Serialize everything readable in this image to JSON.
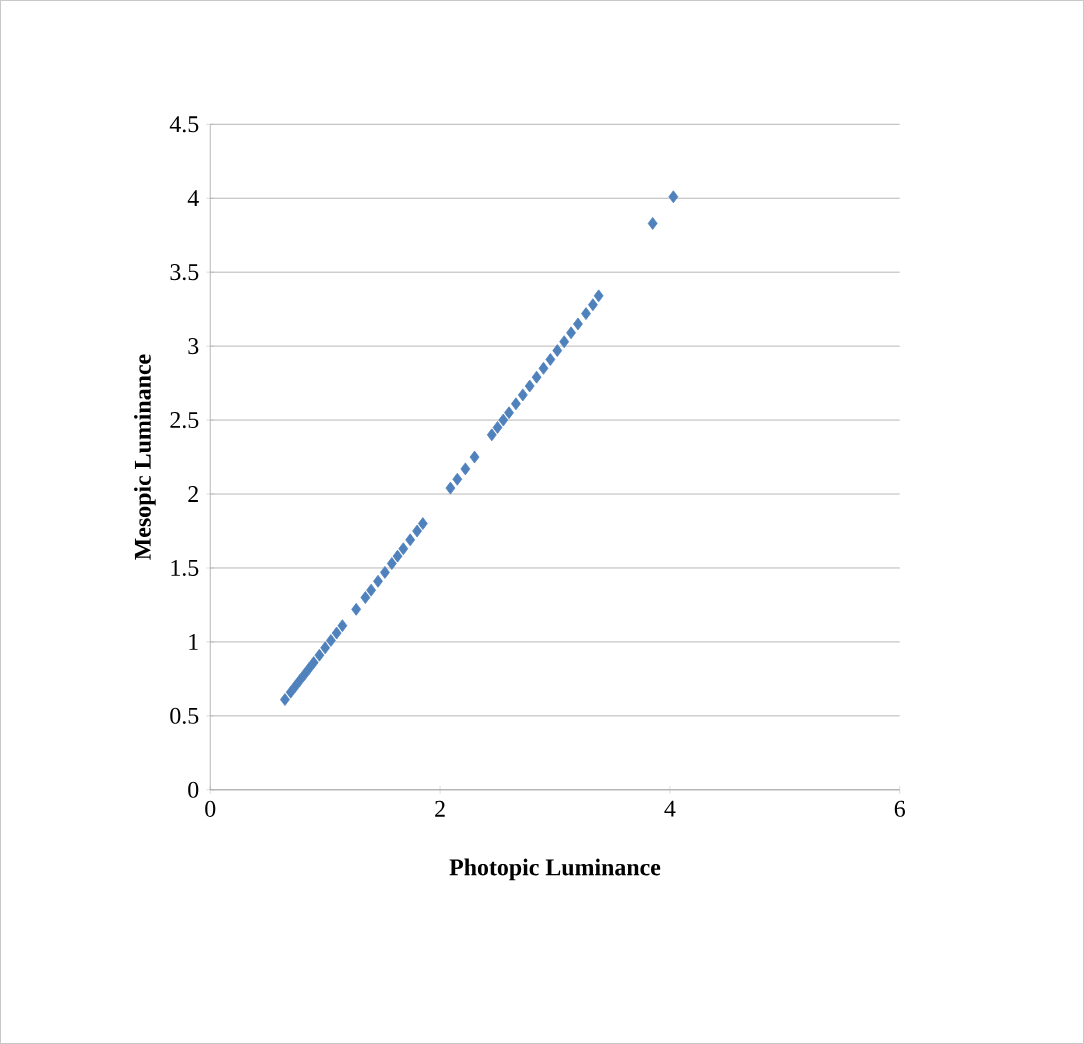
{
  "chart_data": {
    "type": "scatter",
    "xlabel": "Photopic Luminance",
    "ylabel": "Mesopic Luminance",
    "x": [
      0.65,
      0.7,
      0.74,
      0.78,
      0.82,
      0.86,
      0.9,
      0.95,
      1.0,
      1.05,
      1.1,
      1.15,
      1.27,
      1.35,
      1.4,
      1.46,
      1.52,
      1.58,
      1.63,
      1.68,
      1.74,
      1.8,
      1.85,
      2.09,
      2.15,
      2.22,
      2.3,
      2.45,
      2.5,
      2.55,
      2.6,
      2.66,
      2.72,
      2.78,
      2.84,
      2.9,
      2.96,
      3.02,
      3.08,
      3.14,
      3.2,
      3.27,
      3.33,
      3.38,
      3.85,
      4.03
    ],
    "values": [
      0.61,
      0.66,
      0.7,
      0.74,
      0.78,
      0.82,
      0.86,
      0.91,
      0.96,
      1.01,
      1.06,
      1.11,
      1.22,
      1.3,
      1.35,
      1.41,
      1.47,
      1.53,
      1.58,
      1.63,
      1.69,
      1.75,
      1.8,
      2.04,
      2.1,
      2.17,
      2.25,
      2.4,
      2.45,
      2.5,
      2.55,
      2.61,
      2.67,
      2.73,
      2.79,
      2.85,
      2.91,
      2.97,
      3.03,
      3.09,
      3.15,
      3.22,
      3.28,
      3.34,
      3.83,
      4.01
    ],
    "color": "#4f81bd",
    "marker": "diamond",
    "grid": "y",
    "xlim": [
      0,
      6
    ],
    "xticks": [
      0,
      2,
      4,
      6
    ],
    "ylim": [
      0,
      4.5
    ],
    "yticks": [
      0,
      0.5,
      1,
      1.5,
      2,
      2.5,
      3,
      3.5,
      4,
      4.5
    ]
  }
}
